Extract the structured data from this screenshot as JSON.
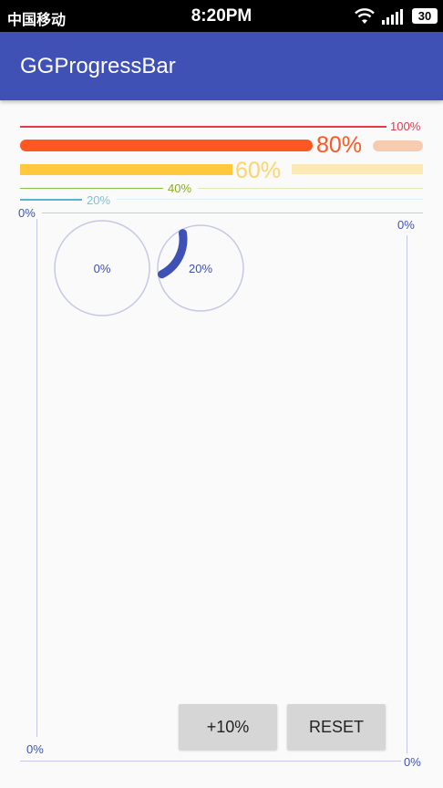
{
  "status_bar": {
    "carrier": "中国移动",
    "time": "8:20PM",
    "battery": "30",
    "icons": [
      "wifi-icon",
      "signal-icon",
      "battery-icon"
    ]
  },
  "app_bar": {
    "title": "GGProgressBar",
    "color": "#3f51b5"
  },
  "horizontal_bars": [
    {
      "label": "100%",
      "progress": 1.0,
      "color": "#e53950"
    },
    {
      "label": "80%",
      "progress": 0.8,
      "color": "#ff5722"
    },
    {
      "label": "60%",
      "progress": 0.6,
      "color": "#ffc83d"
    },
    {
      "label": "40%",
      "progress": 0.4,
      "color": "#8bc34a"
    },
    {
      "label": "20%",
      "progress": 0.2,
      "color": "#56b6cf"
    }
  ],
  "vertical_area": {
    "top_left_label": "0%",
    "top_right_label": "0%",
    "bottom_left_label": "0%",
    "bottom_right_label": "0%"
  },
  "circles": [
    {
      "label": "0%",
      "progress": 0.0
    },
    {
      "label": "20%",
      "progress": 0.2
    }
  ],
  "buttons": {
    "increment_label": "+10%",
    "reset_label": "RESET"
  }
}
